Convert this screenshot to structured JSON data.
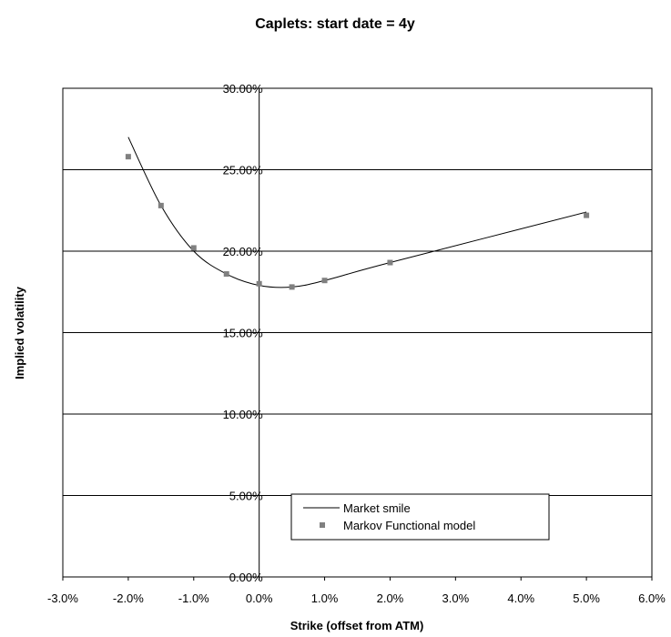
{
  "chart_data": {
    "type": "line",
    "title": "Caplets: start date = 4y",
    "xlabel": "Strike (offset from ATM)",
    "ylabel": "Implied volatility",
    "xlim": [
      -0.03,
      0.06
    ],
    "ylim": [
      0,
      0.3
    ],
    "x_ticks": [
      -0.03,
      -0.02,
      -0.01,
      0,
      0.01,
      0.02,
      0.03,
      0.04,
      0.05,
      0.06
    ],
    "x_tick_labels": [
      "-3.0%",
      "-2.0%",
      "-1.0%",
      "0.0%",
      "1.0%",
      "2.0%",
      "3.0%",
      "4.0%",
      "5.0%",
      "6.0%"
    ],
    "y_ticks": [
      0,
      0.05,
      0.1,
      0.15,
      0.2,
      0.25,
      0.3
    ],
    "y_tick_labels": [
      "0.00%",
      "5.00%",
      "10.00%",
      "15.00%",
      "20.00%",
      "25.00%",
      "30.00%"
    ],
    "grid": "horizontal",
    "legend_placement": "bottom-center",
    "series": [
      {
        "name": "Market smile",
        "kind": "line",
        "color": "#000000",
        "x": [
          -0.02,
          -0.015,
          -0.01,
          -0.005,
          0,
          0.005,
          0.01,
          0.02,
          0.05
        ],
        "y": [
          0.27,
          0.228,
          0.2,
          0.186,
          0.179,
          0.178,
          0.182,
          0.193,
          0.224
        ]
      },
      {
        "name": "Markov Functional model",
        "kind": "scatter",
        "color": "#808080",
        "x": [
          -0.02,
          -0.015,
          -0.01,
          -0.005,
          0,
          0.005,
          0.01,
          0.02,
          0.05
        ],
        "y": [
          0.258,
          0.228,
          0.202,
          0.186,
          0.18,
          0.178,
          0.182,
          0.193,
          0.222
        ]
      }
    ]
  }
}
